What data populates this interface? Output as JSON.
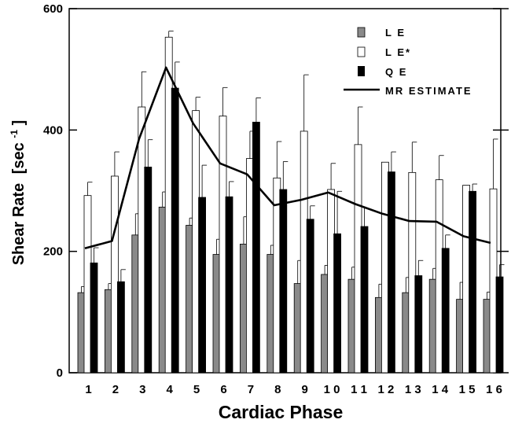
{
  "chart_data": {
    "type": "bar",
    "xlabel": "Cardiac Phase",
    "ylabel": "Shear Rate",
    "ylabel_unit": "[sec",
    "ylabel_exp": "-1",
    "ylabel_close": "]",
    "ylim": [
      0,
      600
    ],
    "yticks": [
      0,
      200,
      400,
      600
    ],
    "categories": [
      "1",
      "2",
      "3",
      "4",
      "5",
      "6",
      "7",
      "8",
      "9",
      "10",
      "11",
      "12",
      "13",
      "14",
      "15",
      "16"
    ],
    "series": [
      {
        "name": "L E",
        "style": "gray",
        "values": [
          132,
          137,
          227,
          273,
          243,
          195,
          212,
          195,
          147,
          162,
          154,
          124,
          132,
          154,
          121,
          121
        ],
        "errors": [
          10,
          10,
          35,
          25,
          12,
          25,
          45,
          15,
          38,
          15,
          20,
          22,
          25,
          18,
          28,
          12
        ]
      },
      {
        "name": "L E*",
        "style": "white",
        "values": [
          292,
          324,
          438,
          553,
          432,
          423,
          353,
          321,
          398,
          302,
          376,
          347,
          330,
          318,
          309,
          303
        ],
        "errors": [
          22,
          40,
          58,
          10,
          22,
          47,
          45,
          60,
          93,
          43,
          62,
          0,
          50,
          40,
          0,
          82
        ]
      },
      {
        "name": "Q E",
        "style": "black",
        "values": [
          181,
          150,
          339,
          469,
          289,
          290,
          413,
          302,
          253,
          229,
          241,
          331,
          160,
          205,
          299,
          158
        ],
        "errors": [
          25,
          20,
          45,
          43,
          53,
          25,
          40,
          46,
          22,
          70,
          30,
          33,
          25,
          22,
          12,
          20
        ]
      }
    ],
    "line": {
      "name": "MR  ESTIMATE",
      "values": [
        205,
        217,
        385,
        503,
        411,
        345,
        327,
        276,
        285,
        297,
        278,
        262,
        250,
        249,
        225,
        214
      ]
    },
    "legend_position": "top-right",
    "grid": false
  },
  "colors": {
    "le": "#8a8a8a",
    "le_star": "#ffffff",
    "qe": "#000000",
    "line": "#000000"
  }
}
